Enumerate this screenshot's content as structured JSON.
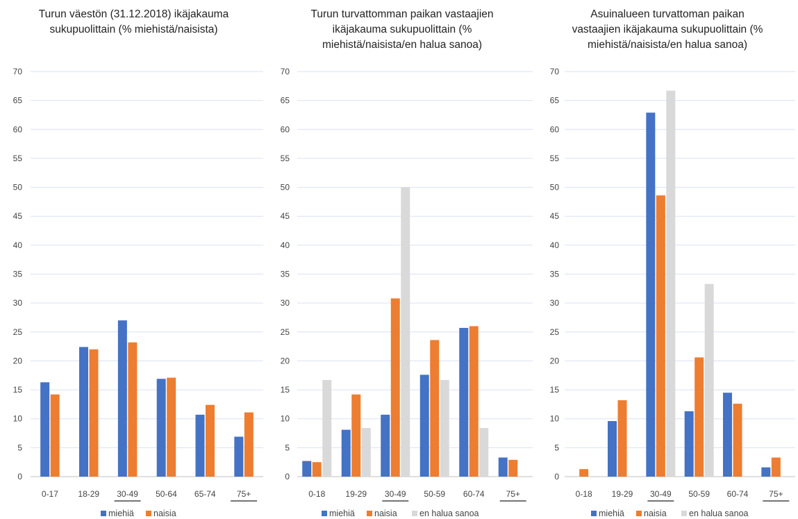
{
  "colors": {
    "miehia": "#4472c4",
    "naisia": "#ed7d31",
    "en_halua_sanoa": "#d9d9d9",
    "grid": "#d9e1f2",
    "axis": "#bfbfbf"
  },
  "chart_data": [
    {
      "type": "bar",
      "title": "Turun väestön (31.12.2018) ikäjakauma\nsukupuolittain (% miehistä/naisista)",
      "ylim": [
        0,
        70
      ],
      "yticks": [
        "0",
        "5",
        "10",
        "15",
        "20",
        "25",
        "30",
        "35",
        "40",
        "45",
        "50",
        "55",
        "60",
        "65",
        "70"
      ],
      "categories": [
        "0-17",
        "18-29",
        "30-49",
        "50-64",
        "65-74",
        "75+"
      ],
      "underlined_categories": [
        "30-49",
        "75+"
      ],
      "legend_position": "bottom",
      "series": [
        {
          "name": "miehiä",
          "color": "#4472c4",
          "values": [
            16.3,
            22.4,
            27.0,
            16.9,
            10.7,
            6.9
          ]
        },
        {
          "name": "naisia",
          "color": "#ed7d31",
          "values": [
            14.2,
            22.0,
            23.2,
            17.1,
            12.4,
            11.1
          ]
        }
      ]
    },
    {
      "type": "bar",
      "title": "Turun turvattomman paikan vastaajien\nikäjakauma sukupuolittain (%\nmiehistä/naisista/en halua sanoa)",
      "ylim": [
        0,
        70
      ],
      "yticks": [
        "0",
        "5",
        "10",
        "15",
        "20",
        "25",
        "30",
        "35",
        "40",
        "45",
        "50",
        "55",
        "60",
        "65",
        "70"
      ],
      "categories": [
        "0-18",
        "19-29",
        "30-49",
        "50-59",
        "60-74",
        "75+"
      ],
      "underlined_categories": [
        "30-49",
        "75+"
      ],
      "legend_position": "bottom",
      "series": [
        {
          "name": "miehiä",
          "color": "#4472c4",
          "values": [
            2.7,
            8.1,
            10.7,
            17.6,
            25.7,
            3.3
          ]
        },
        {
          "name": "naisia",
          "color": "#ed7d31",
          "values": [
            2.5,
            14.2,
            30.8,
            23.6,
            26.0,
            2.9
          ]
        },
        {
          "name": "en halua sanoa",
          "color": "#d9d9d9",
          "values": [
            16.7,
            8.4,
            50.0,
            16.7,
            8.4,
            0
          ]
        }
      ]
    },
    {
      "type": "bar",
      "title": "Asuinalueen turvattoman paikan\nvastaajien ikäjakauma sukupuolittain (%\nmiehistä/naisista/en halua sanoa)",
      "ylim": [
        0,
        70
      ],
      "yticks": [
        "0",
        "5",
        "10",
        "15",
        "20",
        "25",
        "30",
        "35",
        "40",
        "45",
        "50",
        "55",
        "60",
        "65",
        "70"
      ],
      "categories": [
        "0-18",
        "19-29",
        "30-49",
        "50-59",
        "60-74",
        "75+"
      ],
      "underlined_categories": [
        "30-49",
        "75+"
      ],
      "legend_position": "bottom",
      "series": [
        {
          "name": "miehiä",
          "color": "#4472c4",
          "values": [
            0,
            9.6,
            62.9,
            11.3,
            14.5,
            1.6
          ]
        },
        {
          "name": "naisia",
          "color": "#ed7d31",
          "values": [
            1.3,
            13.2,
            48.6,
            20.6,
            12.6,
            3.3
          ]
        },
        {
          "name": "en halua sanoa",
          "color": "#d9d9d9",
          "values": [
            0,
            0,
            66.7,
            33.3,
            0,
            0
          ]
        }
      ]
    }
  ]
}
